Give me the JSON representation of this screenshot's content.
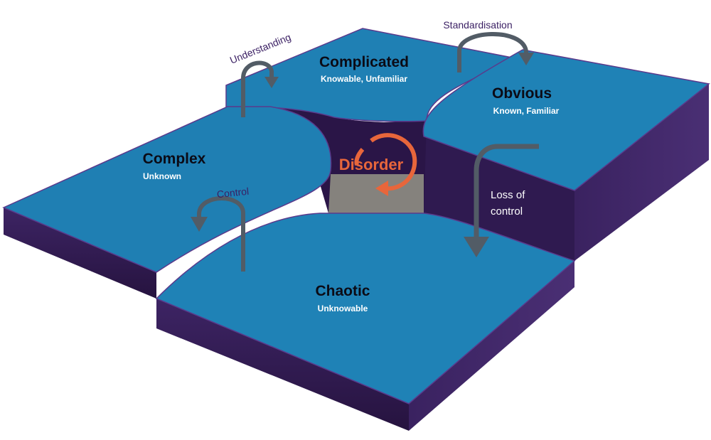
{
  "domains": {
    "complicated": {
      "title": "Complicated",
      "subtitle": "Knowable, Unfamiliar"
    },
    "obvious": {
      "title": "Obvious",
      "subtitle": "Known, Familiar"
    },
    "complex": {
      "title": "Complex",
      "subtitle": "Unknown"
    },
    "chaotic": {
      "title": "Chaotic",
      "subtitle": "Unknowable"
    }
  },
  "center": {
    "label": "Disorder"
  },
  "transitions": {
    "understanding": "Understanding",
    "standardisation": "Standardisation",
    "control": "Control",
    "loss_of_control_line1": "Loss of",
    "loss_of_control_line2": "control"
  },
  "colors": {
    "surface": "#1f80b4",
    "side": "#321c55",
    "disorder": "#e8663b",
    "arrow": "#525c66",
    "pit_floor": "#85827d"
  }
}
